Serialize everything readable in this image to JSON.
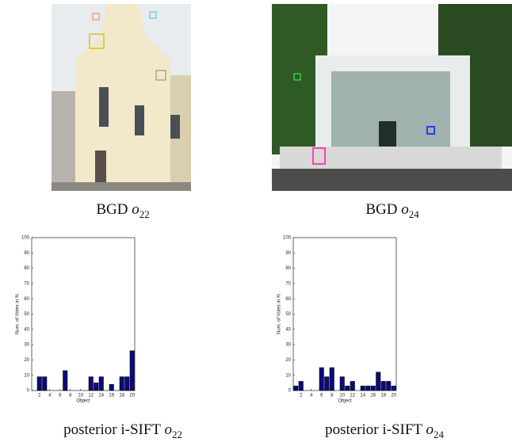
{
  "chart_data": [
    {
      "type": "bar",
      "x": [
        1,
        2,
        3,
        4,
        5,
        6,
        7,
        8,
        9,
        10,
        11,
        12,
        13,
        14,
        15,
        16,
        17,
        18,
        19,
        20
      ],
      "values": [
        0,
        9,
        9,
        0,
        0,
        0,
        13,
        0,
        0,
        0,
        0,
        9,
        5,
        9,
        0,
        4,
        0,
        9,
        9,
        26
      ],
      "color": "#0b0b7c",
      "xlim": [
        0.5,
        20.5
      ],
      "xticks": [
        2,
        4,
        6,
        8,
        10,
        12,
        14,
        16,
        18,
        20
      ],
      "ylim": [
        0,
        100
      ],
      "yticks": [
        0,
        10,
        20,
        30,
        40,
        50,
        60,
        70,
        80,
        90,
        100
      ],
      "x_label": "Object",
      "y_label": "Num. of Votes in %"
    },
    {
      "type": "bar",
      "x": [
        1,
        2,
        3,
        4,
        5,
        6,
        7,
        8,
        9,
        10,
        11,
        12,
        13,
        14,
        15,
        16,
        17,
        18,
        19,
        20
      ],
      "values": [
        3,
        6,
        0,
        0,
        0,
        15,
        9,
        15,
        0,
        9,
        3,
        6,
        0,
        3,
        3,
        3,
        12,
        6,
        6,
        3
      ],
      "color": "#0b0b7c",
      "xlim": [
        0.5,
        20.5
      ],
      "xticks": [
        2,
        4,
        6,
        8,
        10,
        12,
        14,
        16,
        18,
        20
      ],
      "ylim": [
        0,
        100
      ],
      "yticks": [
        0,
        10,
        20,
        30,
        40,
        50,
        60,
        70,
        80,
        90,
        100
      ],
      "x_label": "Object",
      "y_label": "Num. of Votes in %"
    }
  ],
  "captions": [
    {
      "prefix": "BGD",
      "symbol": "o",
      "subscript": "22"
    },
    {
      "prefix": "BGD",
      "symbol": "o",
      "subscript": "24"
    },
    {
      "prefix": "posterior i-SIFT",
      "symbol": "o",
      "subscript": "22"
    },
    {
      "prefix": "posterior i-SIFT",
      "symbol": "o",
      "subscript": "24"
    }
  ]
}
